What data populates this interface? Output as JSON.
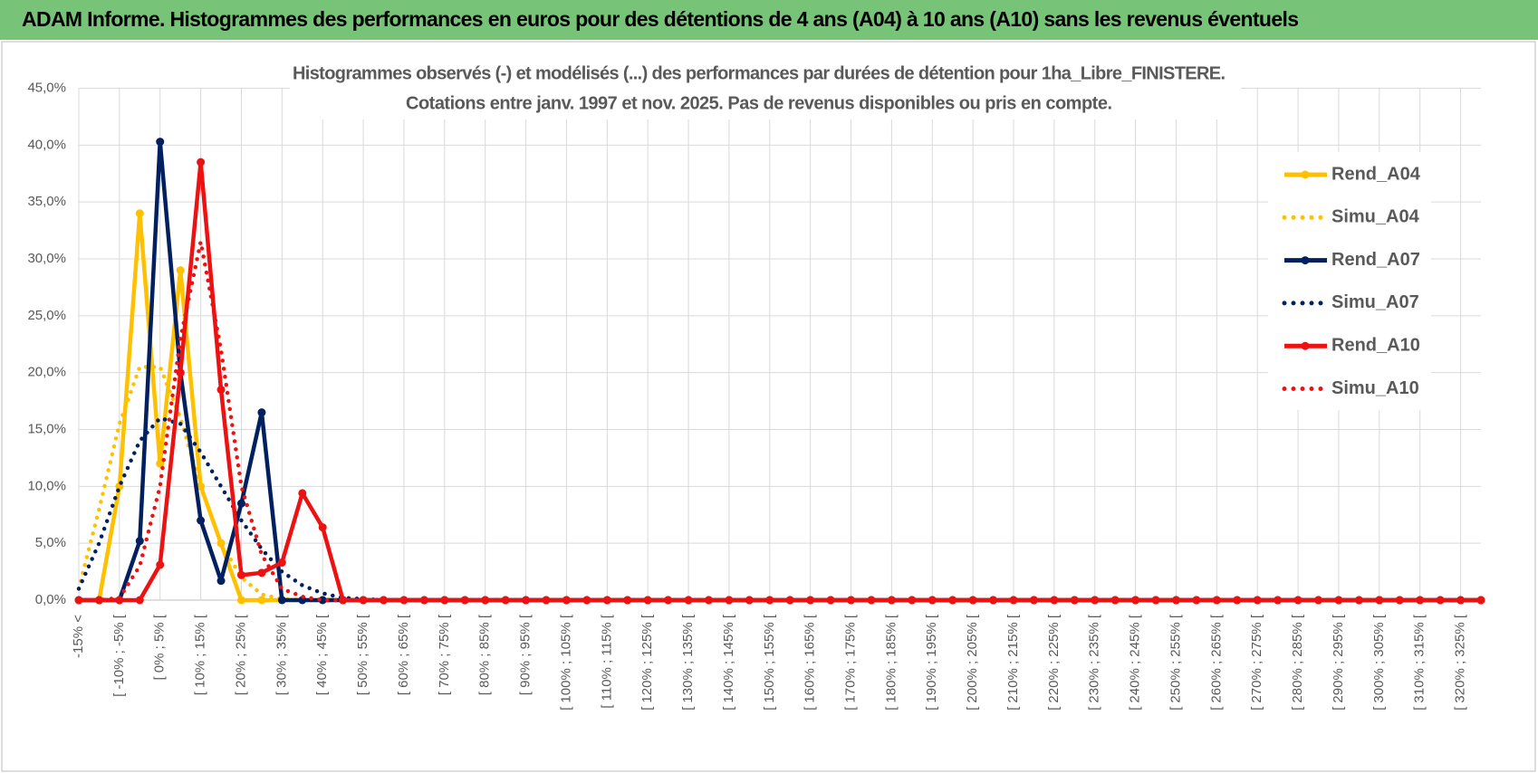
{
  "header": {
    "title": "ADAM Informe. Histogrammes des performances en euros pour des détentions de 4 ans (A04) à 10 ans (A10) sans les revenus éventuels"
  },
  "chart_data": {
    "type": "line",
    "title": "Histogrammes observés (-) et modélisés (...) des performances par durées de détention pour 1ha_Libre_FINISTERE.",
    "subtitle": "Cotations entre janv. 1997 et nov. 2025. Pas de revenus disponibles ou pris en compte.",
    "categories": [
      "-15% <",
      null,
      "[ -10% ; -5% [",
      null,
      "[ 0% ; 5% [",
      null,
      "[ 10% ; 15% [",
      null,
      "[ 20% ; 25% [",
      null,
      "[ 30% ; 35% [",
      null,
      "[ 40% ; 45% [",
      null,
      "[ 50% ; 55% [",
      null,
      "[ 60% ; 65% [",
      null,
      "[ 70% ; 75% [",
      null,
      "[ 80% ; 85% [",
      null,
      "[ 90% ; 95% [",
      null,
      "[ 100% ; 105% [",
      null,
      "[ 110% ; 115% [",
      null,
      "[ 120% ; 125% [",
      null,
      "[ 130% ; 135% [",
      null,
      "[ 140% ; 145% [",
      null,
      "[ 150% ; 155% [",
      null,
      "[ 160% ; 165% [",
      null,
      "[ 170% ; 175% [",
      null,
      "[ 180% ; 185% [",
      null,
      "[ 190% ; 195% [",
      null,
      "[ 200% ; 205% [",
      null,
      "[ 210% ; 215% [",
      null,
      "[ 220% ; 225% [",
      null,
      "[ 230% ; 235% [",
      null,
      "[ 240% ; 245% [",
      null,
      "[ 250% ; 255% [",
      null,
      "[ 260% ; 265% [",
      null,
      "[ 270% ; 275% [",
      null,
      "[ 280% ; 285% [",
      null,
      "[ 290% ; 295% [",
      null,
      "[ 300% ; 305% [",
      null,
      "[ 310% ; 315% [",
      null,
      "[ 320% ; 325% [",
      null
    ],
    "series": [
      {
        "name": "Rend_A04",
        "color": "#ffc000",
        "style": "solid",
        "marker": true,
        "values": [
          0,
          0,
          10,
          34,
          12,
          29,
          10,
          5,
          0,
          0,
          0,
          0,
          0,
          0,
          0,
          0,
          0,
          0,
          0,
          0,
          0,
          0,
          0,
          0,
          0,
          0,
          0,
          0,
          0,
          0,
          0,
          0,
          0,
          0,
          0,
          0,
          0,
          0,
          0,
          0,
          0,
          0,
          0,
          0,
          0,
          0,
          0,
          0,
          0,
          0,
          0,
          0,
          0,
          0,
          0,
          0,
          0,
          0,
          0,
          0,
          0,
          0,
          0,
          0,
          0,
          0,
          0,
          0,
          0,
          0
        ]
      },
      {
        "name": "Simu_A04",
        "color": "#ffc000",
        "style": "dotted",
        "marker": false,
        "values": [
          1,
          8,
          15.5,
          20.5,
          20.5,
          16,
          10,
          5,
          2,
          0.5,
          0.1,
          0,
          0,
          0,
          0,
          0,
          0,
          0,
          0,
          0,
          0,
          0,
          0,
          0,
          0,
          0,
          0,
          0,
          0,
          0,
          0,
          0,
          0,
          0,
          0,
          0,
          0,
          0,
          0,
          0,
          0,
          0,
          0,
          0,
          0,
          0,
          0,
          0,
          0,
          0,
          0,
          0,
          0,
          0,
          0,
          0,
          0,
          0,
          0,
          0,
          0,
          0,
          0,
          0,
          0,
          0,
          0,
          0,
          0,
          0
        ]
      },
      {
        "name": "Rend_A07",
        "color": "#002060",
        "style": "solid",
        "marker": true,
        "values": [
          0,
          0,
          0,
          5.2,
          40.3,
          20,
          7,
          1.7,
          8.5,
          16.5,
          0,
          0,
          0,
          0,
          0,
          0,
          0,
          0,
          0,
          0,
          0,
          0,
          0,
          0,
          0,
          0,
          0,
          0,
          0,
          0,
          0,
          0,
          0,
          0,
          0,
          0,
          0,
          0,
          0,
          0,
          0,
          0,
          0,
          0,
          0,
          0,
          0,
          0,
          0,
          0,
          0,
          0,
          0,
          0,
          0,
          0,
          0,
          0,
          0,
          0,
          0,
          0,
          0,
          0,
          0,
          0,
          0,
          0,
          0,
          0
        ]
      },
      {
        "name": "Simu_A07",
        "color": "#002060",
        "style": "dotted",
        "marker": false,
        "values": [
          1,
          5,
          10,
          14,
          16,
          15.5,
          13,
          10,
          7,
          4.5,
          2.5,
          1.3,
          0.6,
          0.2,
          0.1,
          0,
          0,
          0,
          0,
          0,
          0,
          0,
          0,
          0,
          0,
          0,
          0,
          0,
          0,
          0,
          0,
          0,
          0,
          0,
          0,
          0,
          0,
          0,
          0,
          0,
          0,
          0,
          0,
          0,
          0,
          0,
          0,
          0,
          0,
          0,
          0,
          0,
          0,
          0,
          0,
          0,
          0,
          0,
          0,
          0,
          0,
          0,
          0,
          0,
          0,
          0,
          0,
          0,
          0,
          0
        ]
      },
      {
        "name": "Rend_A10",
        "color": "#ee1111",
        "style": "solid",
        "marker": true,
        "values": [
          0,
          0,
          0,
          0,
          3.1,
          20,
          38.5,
          18.5,
          2.2,
          2.4,
          3.3,
          9.4,
          6.4,
          0,
          0,
          0,
          0,
          0,
          0,
          0,
          0,
          0,
          0,
          0,
          0,
          0,
          0,
          0,
          0,
          0,
          0,
          0,
          0,
          0,
          0,
          0,
          0,
          0,
          0,
          0,
          0,
          0,
          0,
          0,
          0,
          0,
          0,
          0,
          0,
          0,
          0,
          0,
          0,
          0,
          0,
          0,
          0,
          0,
          0,
          0,
          0,
          0,
          0,
          0,
          0,
          0,
          0,
          0,
          0,
          0
        ]
      },
      {
        "name": "Simu_A10",
        "color": "#ee1111",
        "style": "dotted",
        "marker": false,
        "values": [
          0,
          0,
          0.2,
          3,
          10,
          23,
          31.5,
          22,
          10,
          4,
          1,
          0.3,
          0,
          0,
          0,
          0,
          0,
          0,
          0,
          0,
          0,
          0,
          0,
          0,
          0,
          0,
          0,
          0,
          0,
          0,
          0,
          0,
          0,
          0,
          0,
          0,
          0,
          0,
          0,
          0,
          0,
          0,
          0,
          0,
          0,
          0,
          0,
          0,
          0,
          0,
          0,
          0,
          0,
          0,
          0,
          0,
          0,
          0,
          0,
          0,
          0,
          0,
          0,
          0,
          0,
          0,
          0,
          0,
          0,
          0
        ]
      }
    ],
    "ylim": [
      0,
      45
    ],
    "yticks": [
      {
        "value": 0,
        "label": "0,0%"
      },
      {
        "value": 5,
        "label": "5,0%"
      },
      {
        "value": 10,
        "label": "10,0%"
      },
      {
        "value": 15,
        "label": "15,0%"
      },
      {
        "value": 20,
        "label": "20,0%"
      },
      {
        "value": 25,
        "label": "25,0%"
      },
      {
        "value": 30,
        "label": "30,0%"
      },
      {
        "value": 35,
        "label": "35,0%"
      },
      {
        "value": 40,
        "label": "40,0%"
      },
      {
        "value": 45,
        "label": "45,0%"
      }
    ],
    "grid": true,
    "legend": "right"
  }
}
